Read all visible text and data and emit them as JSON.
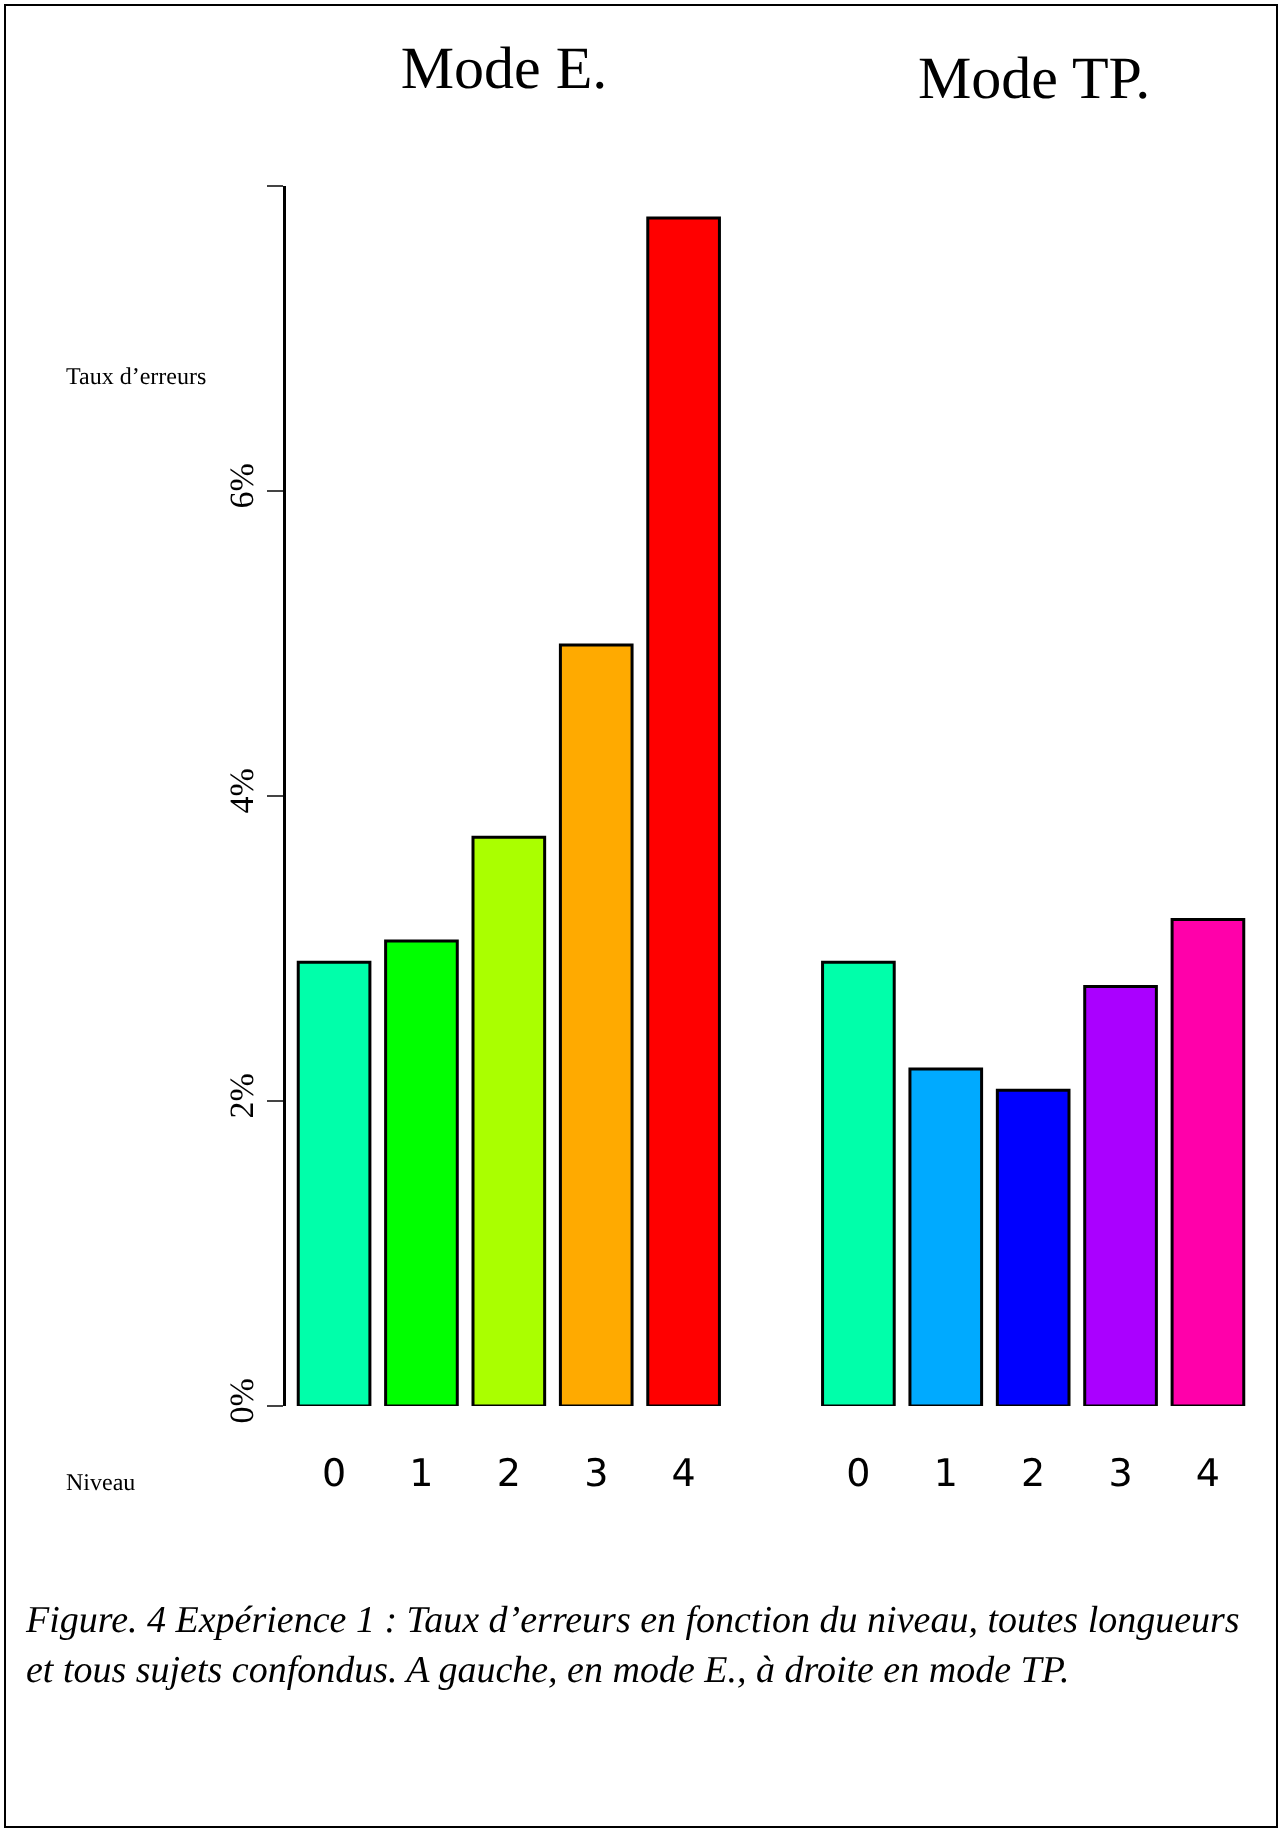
{
  "chart_data": {
    "type": "bar",
    "title": "Mode E.",
    "ylabel": "Taux d’erreurs",
    "xlabel": "Niveau",
    "categories": [
      "0",
      "1",
      "2",
      "3",
      "4",
      null,
      "0",
      "1",
      "2",
      "3",
      "4"
    ],
    "values": [
      2.91,
      3.05,
      3.73,
      4.99,
      7.79,
      null,
      2.91,
      2.21,
      2.07,
      2.75,
      3.19
    ],
    "colors": [
      "#00ffaa",
      "#00ff00",
      "#aaff00",
      "#ffaa00",
      "#ff0000",
      null,
      "#00ffaa",
      "#00aaff",
      "#0000ff",
      "#aa00ff",
      "#ff00aa"
    ],
    "ylim": [
      0,
      8
    ],
    "yticks": [
      {
        "value": 0,
        "label": "0%"
      },
      {
        "value": 2,
        "label": "2%"
      },
      {
        "value": 4,
        "label": "4%"
      },
      {
        "value": 6,
        "label": "6%"
      },
      {
        "value": 8,
        "label": null
      }
    ],
    "grid": false,
    "legend": false,
    "annotations": [
      "Mode TP.",
      "Figure. 4 Expérience 1 : Taux d’erreurs  en fonction du niveau,  toutes longueurs et tous sujets confondus. A gauche, en mode E., à droite en mode TP."
    ]
  }
}
